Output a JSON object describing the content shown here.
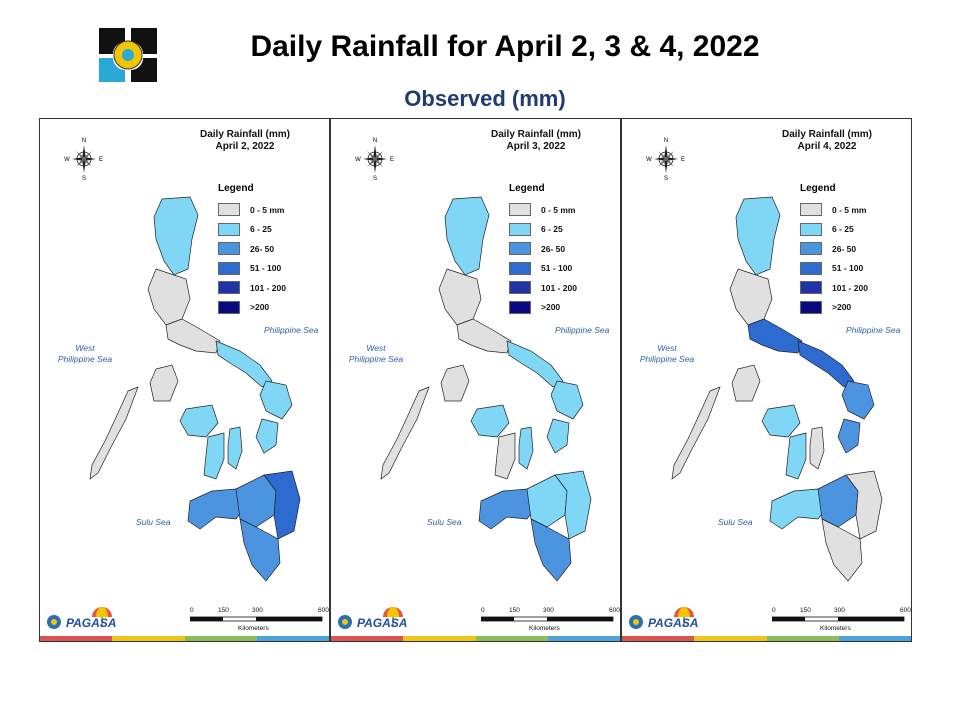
{
  "slide": {
    "title": "Daily Rainfall for April 2, 3 & 4, 2022",
    "subtitle": "Observed (mm)"
  },
  "legend": {
    "heading": "Legend",
    "classes": [
      {
        "label": "0 - 5 mm",
        "color": "#e0e0e0"
      },
      {
        "label": "6 - 25",
        "color": "#7fd6f5"
      },
      {
        "label": "26- 50",
        "color": "#4d94e0"
      },
      {
        "label": "51 - 100",
        "color": "#2d6bd1"
      },
      {
        "label": "101 - 200",
        "color": "#2233aa"
      },
      {
        "label": ">200",
        "color": "#0a0a80"
      }
    ]
  },
  "maps": [
    {
      "title_line1": "Daily Rainfall (mm)",
      "title_line2": "April 2, 2022",
      "region_levels": {
        "north_luzon": 1,
        "central_luzon": 0,
        "south_luzon": 0,
        "mindoro": 0,
        "palawan": 0,
        "bicol": 1,
        "samar": 1,
        "panay": 1,
        "negros": 1,
        "cebu": 1,
        "leyte": 1,
        "mindanao_west": 2,
        "mindanao_central": 2,
        "mindanao_east": 3,
        "mindanao_south": 2
      }
    },
    {
      "title_line1": "Daily Rainfall (mm)",
      "title_line2": "April 3, 2022",
      "region_levels": {
        "north_luzon": 1,
        "central_luzon": 0,
        "south_luzon": 0,
        "mindoro": 0,
        "palawan": 0,
        "bicol": 1,
        "samar": 1,
        "panay": 1,
        "negros": 0,
        "cebu": 1,
        "leyte": 1,
        "mindanao_west": 2,
        "mindanao_central": 1,
        "mindanao_east": 1,
        "mindanao_south": 2
      }
    },
    {
      "title_line1": "Daily Rainfall (mm)",
      "title_line2": "April 4, 2022",
      "region_levels": {
        "north_luzon": 1,
        "central_luzon": 0,
        "south_luzon": 3,
        "mindoro": 0,
        "palawan": 0,
        "bicol": 3,
        "samar": 2,
        "panay": 1,
        "negros": 1,
        "cebu": 0,
        "leyte": 2,
        "mindanao_west": 1,
        "mindanao_central": 2,
        "mindanao_east": 0,
        "mindanao_south": 0
      }
    }
  ],
  "seas": {
    "philippine_sea": "Philippine Sea",
    "west_ph_sea_line1": "West",
    "west_ph_sea_line2": "Philippine Sea",
    "sulu_sea": "Sulu Sea"
  },
  "compass": {
    "n": "N",
    "s": "S",
    "e": "E",
    "w": "W"
  },
  "scale": {
    "ticks": [
      "0",
      "150",
      "300",
      "600"
    ],
    "unit": "Kilometers"
  },
  "agency": {
    "name": "PAGASA"
  },
  "strip_colors": [
    "#d9534f",
    "#f0c419",
    "#8fbc5a",
    "#4aa3df"
  ]
}
